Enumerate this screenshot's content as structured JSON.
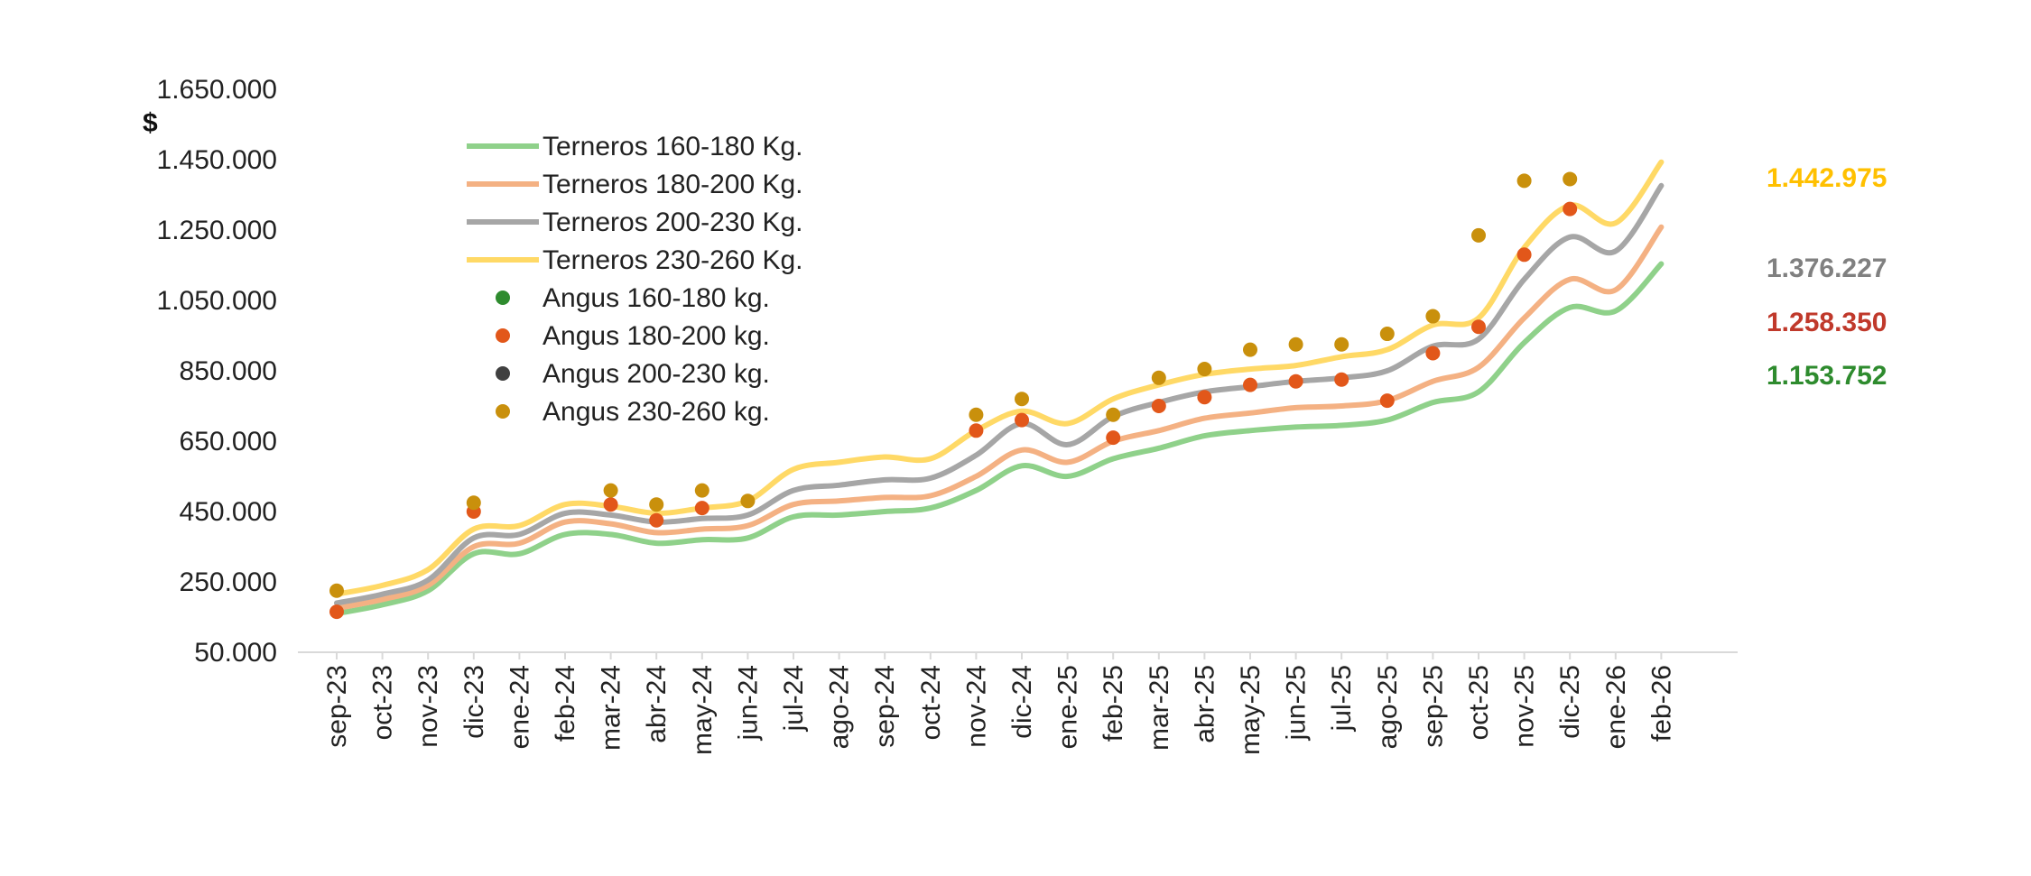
{
  "chart_data": {
    "type": "line",
    "title": "",
    "ylabel": "$",
    "xlabel": "",
    "ylim": [
      50000,
      1750000
    ],
    "yticks": [
      "50.000",
      "250.000",
      "450.000",
      "650.000",
      "850.000",
      "1.050.000",
      "1.250.000",
      "1.450.000",
      "1.650.000"
    ],
    "ytick_values": [
      50000,
      250000,
      450000,
      650000,
      850000,
      1050000,
      1250000,
      1450000,
      1650000
    ],
    "categories": [
      "sep-23",
      "oct-23",
      "nov-23",
      "dic-23",
      "ene-24",
      "feb-24",
      "mar-24",
      "abr-24",
      "may-24",
      "jun-24",
      "jul-24",
      "ago-24",
      "sep-24",
      "oct-24",
      "nov-24",
      "dic-24",
      "ene-25",
      "feb-25",
      "mar-25",
      "abr-25",
      "may-25",
      "jun-25",
      "jul-25",
      "ago-25",
      "sep-25",
      "oct-25",
      "nov-25",
      "dic-25",
      "ene-26",
      "feb-26"
    ],
    "grid": false,
    "legend": "top-left",
    "series": [
      {
        "name": "Terneros 160-180 Kg.",
        "kind": "line",
        "color": "#8fd18a",
        "values": [
          160000,
          185000,
          225000,
          330000,
          330000,
          385000,
          385000,
          360000,
          370000,
          375000,
          435000,
          440000,
          450000,
          460000,
          510000,
          580000,
          550000,
          600000,
          630000,
          665000,
          680000,
          690000,
          695000,
          710000,
          760000,
          790000,
          930000,
          1030000,
          1020000,
          1153752
        ]
      },
      {
        "name": "Terneros 180-200 Kg.",
        "kind": "line",
        "color": "#f4b183",
        "values": [
          175000,
          200000,
          240000,
          350000,
          360000,
          420000,
          415000,
          390000,
          400000,
          410000,
          470000,
          480000,
          490000,
          495000,
          550000,
          625000,
          590000,
          650000,
          680000,
          715000,
          730000,
          745000,
          750000,
          765000,
          820000,
          860000,
          1000000,
          1110000,
          1080000,
          1258350
        ]
      },
      {
        "name": "Terneros 200-230 Kg.",
        "kind": "line",
        "color": "#a6a6a6",
        "values": [
          190000,
          215000,
          255000,
          375000,
          385000,
          445000,
          440000,
          420000,
          430000,
          440000,
          510000,
          525000,
          540000,
          545000,
          610000,
          700000,
          640000,
          720000,
          760000,
          790000,
          805000,
          820000,
          830000,
          850000,
          920000,
          940000,
          1110000,
          1230000,
          1190000,
          1376227
        ]
      },
      {
        "name": "Terneros 230-260 Kg.",
        "kind": "line",
        "color": "#ffd966",
        "values": [
          215000,
          240000,
          285000,
          400000,
          410000,
          470000,
          465000,
          445000,
          460000,
          480000,
          570000,
          590000,
          605000,
          600000,
          680000,
          735000,
          700000,
          770000,
          810000,
          840000,
          855000,
          865000,
          890000,
          910000,
          980000,
          1000000,
          1200000,
          1320000,
          1270000,
          1442975
        ]
      },
      {
        "name": "Angus 160-180 kg.",
        "kind": "scatter",
        "color": "#2e8b2e",
        "values": [
          null,
          null,
          null,
          null,
          null,
          null,
          null,
          null,
          null,
          null,
          null,
          null,
          null,
          null,
          null,
          null,
          null,
          null,
          null,
          null,
          null,
          null,
          null,
          null,
          null,
          null,
          null,
          null,
          null,
          null
        ]
      },
      {
        "name": "Angus 180-200 kg.",
        "kind": "scatter",
        "color": "#e2571a",
        "values": [
          165000,
          null,
          null,
          450000,
          null,
          null,
          470000,
          425000,
          460000,
          null,
          null,
          null,
          null,
          null,
          680000,
          710000,
          null,
          660000,
          750000,
          775000,
          810000,
          820000,
          825000,
          765000,
          900000,
          975000,
          1180000,
          1310000,
          null,
          null
        ]
      },
      {
        "name": "Angus 200-230 kg.",
        "kind": "scatter",
        "color": "#404040",
        "values": [
          null,
          null,
          null,
          null,
          null,
          null,
          null,
          null,
          null,
          null,
          null,
          null,
          null,
          null,
          null,
          null,
          null,
          null,
          null,
          null,
          null,
          null,
          null,
          null,
          null,
          null,
          null,
          null,
          null,
          null
        ]
      },
      {
        "name": "Angus 230-260 kg.",
        "kind": "scatter",
        "color": "#c9900c",
        "values": [
          225000,
          null,
          null,
          475000,
          null,
          null,
          510000,
          470000,
          510000,
          480000,
          null,
          null,
          null,
          null,
          725000,
          770000,
          null,
          725000,
          830000,
          855000,
          910000,
          925000,
          925000,
          955000,
          1005000,
          1235000,
          1390000,
          1395000,
          null,
          null
        ]
      }
    ],
    "end_labels": [
      {
        "text": "1.442.975",
        "color": "#ffc000"
      },
      {
        "text": "1.376.227",
        "color": "#808080"
      },
      {
        "text": "1.258.350",
        "color": "#c0392b"
      },
      {
        "text": "1.153.752",
        "color": "#2e8b2e"
      }
    ]
  }
}
